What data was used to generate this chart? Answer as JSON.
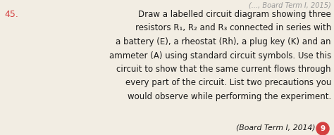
{
  "question_number": "45.",
  "question_number_color": "#d44040",
  "background_color": "#f2ede3",
  "text_color": "#1a1a1a",
  "header_color": "#999999",
  "main_text_lines": [
    "Draw a labelled circuit diagram showing three",
    "resistors R₁, R₂ and R₃ connected in series with",
    "a battery (E), a rheostat (Rh), a plug key (K) and an",
    "ammeter (A) using standard circuit symbols. Use this",
    "circuit to show that the same current flows through",
    "every part of the circuit. List two precautions you",
    "would observe while performing the experiment."
  ],
  "footer_text": "(Board Term I, 2014)",
  "footer_marks": "9",
  "marks_color": "#d44040",
  "font_size_main": 8.5,
  "font_size_number": 9.0,
  "font_size_footer": 7.8,
  "font_size_header": 7.0
}
